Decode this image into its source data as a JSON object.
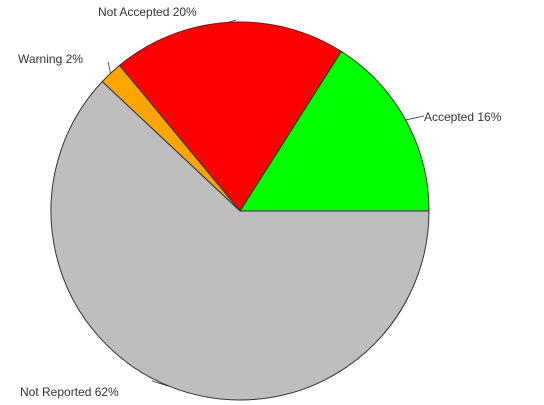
{
  "chart_data": {
    "type": "pie",
    "slices": [
      {
        "label": "Accepted",
        "value": 16,
        "color": "#00ff00"
      },
      {
        "label": "Not Accepted",
        "value": 20,
        "color": "#ff0000"
      },
      {
        "label": "Warning",
        "value": 2,
        "color": "#ffa500"
      },
      {
        "label": "Not Reported",
        "value": 62,
        "color": "#bebebe"
      }
    ],
    "labels": [
      "Accepted 16%",
      "Not Accepted 20%",
      "Warning 2%",
      "Not Reported 62%"
    ],
    "start_angle": "3 o'clock",
    "direction": "counterclockwise"
  }
}
